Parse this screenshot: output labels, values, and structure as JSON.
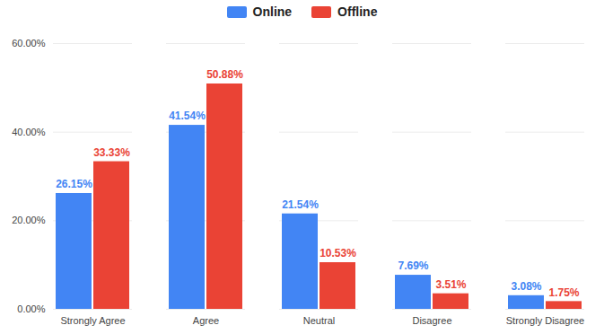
{
  "chart_data": {
    "type": "bar",
    "categories": [
      "Strongly Agree",
      "Agree",
      "Neutral",
      "Disagree",
      "Strongly Disagree"
    ],
    "series": [
      {
        "name": "Online",
        "color": "#4285f4",
        "values": [
          26.15,
          41.54,
          21.54,
          7.69,
          3.08
        ],
        "value_labels": [
          "26.15%",
          "41.54%",
          "21.54%",
          "7.69%",
          "3.08%"
        ]
      },
      {
        "name": "Offline",
        "color": "#ea4335",
        "values": [
          33.33,
          50.88,
          10.53,
          3.51,
          1.75
        ],
        "value_labels": [
          "33.33%",
          "50.88%",
          "10.53%",
          "3.51%",
          "1.75%"
        ]
      }
    ],
    "ylim": [
      0,
      60
    ],
    "yticks": [
      {
        "value": 0,
        "label": "0.00%"
      },
      {
        "value": 20,
        "label": "20.00%"
      },
      {
        "value": 40,
        "label": "40.00%"
      },
      {
        "value": 60,
        "label": "60.00%"
      }
    ],
    "grid": true,
    "legend": "top",
    "data_labels": true
  }
}
